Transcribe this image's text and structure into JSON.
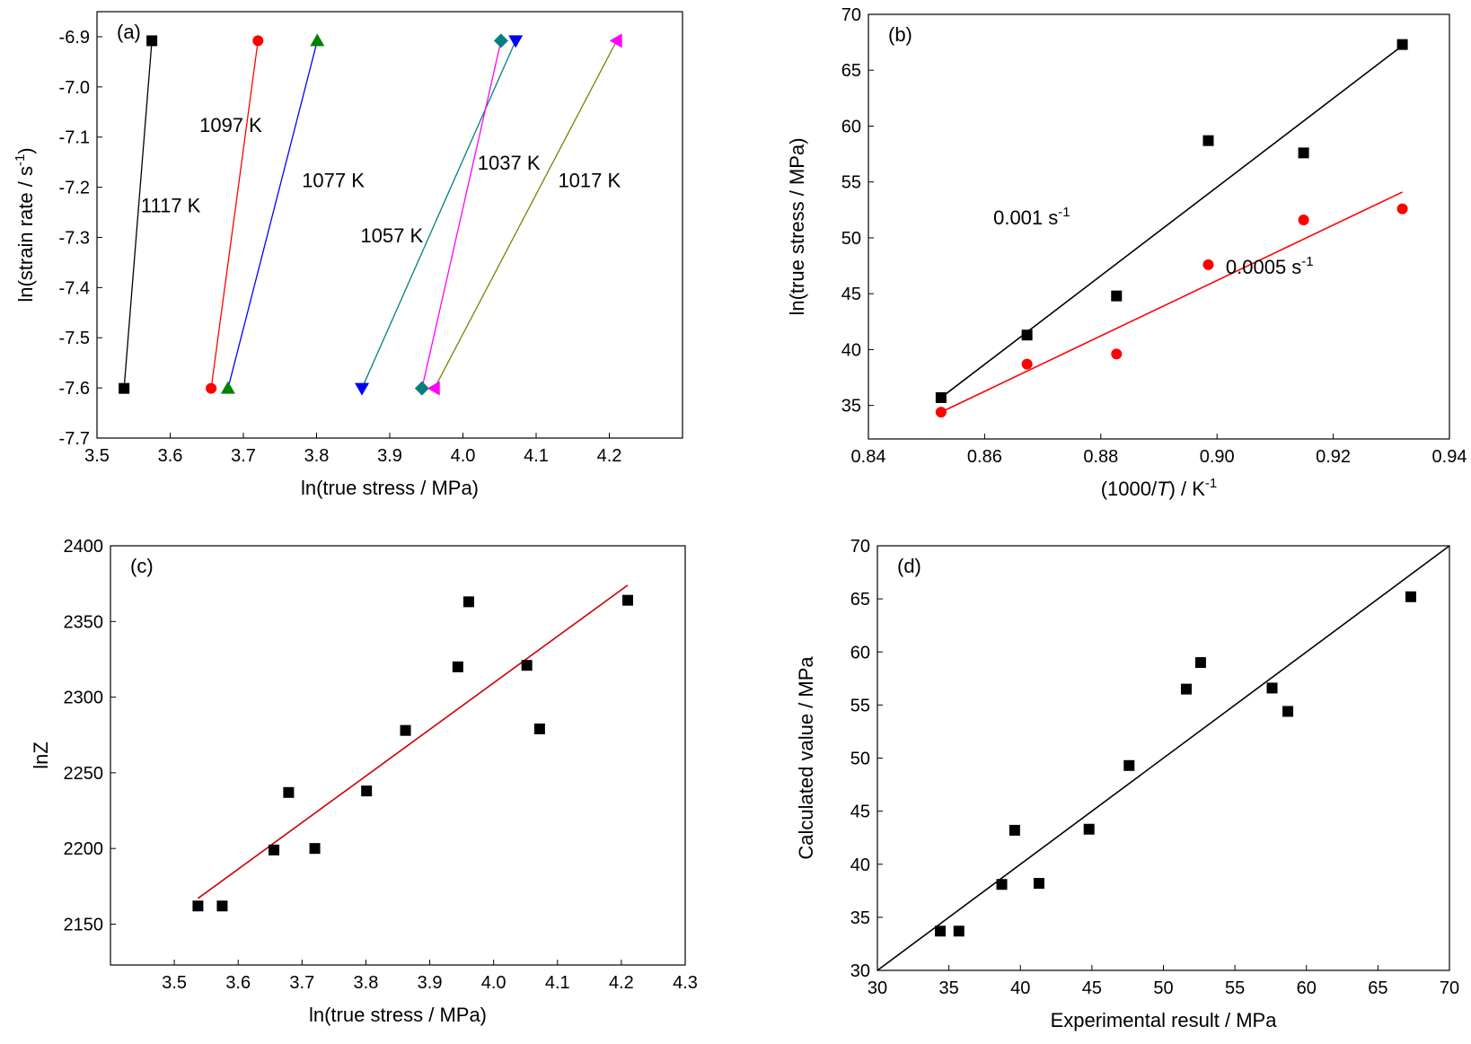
{
  "chart_data": [
    {
      "panel": "(a)",
      "type": "line",
      "xlabel": "ln(true stress / MPa)",
      "ylabel": "ln(strain rate / s",
      "ylabel_sup": "-1",
      "ylabel_end": ")",
      "xlim": [
        3.5,
        4.3
      ],
      "ylim": [
        -7.7,
        -6.85
      ],
      "xticks": [
        "3.5",
        "3.6",
        "3.7",
        "3.8",
        "3.9",
        "4.0",
        "4.1",
        "4.2"
      ],
      "yticks": [
        "-6.9",
        "-7.0",
        "-7.1",
        "-7.2",
        "-7.3",
        "-7.4",
        "-7.5",
        "-7.6",
        "-7.7"
      ],
      "grid": false,
      "series": [
        {
          "name": "1117 K",
          "color": "#000000",
          "marker": "square",
          "points": [
            [
              3.537,
              -7.601
            ],
            [
              3.575,
              -6.908
            ]
          ]
        },
        {
          "name": "1097 K",
          "color": "#ff0000",
          "marker": "circle",
          "points": [
            [
              3.656,
              -7.601
            ],
            [
              3.72,
              -6.908
            ]
          ]
        },
        {
          "name": "1077 K",
          "color": "#0000ff",
          "marker": "triangle-up",
          "points": [
            [
              3.679,
              -7.601
            ],
            [
              3.801,
              -6.908
            ]
          ],
          "marker_color": "#008000"
        },
        {
          "name": "1057 K",
          "color": "#008080",
          "marker": "triangle-down",
          "points": [
            [
              3.862,
              -7.601
            ],
            [
              4.072,
              -6.908
            ]
          ],
          "marker_color": "#0000ff"
        },
        {
          "name": "1037 K",
          "color": "#ff00ff",
          "marker": "diamond",
          "points": [
            [
              3.944,
              -7.601
            ],
            [
              4.052,
              -6.908
            ]
          ],
          "marker_color": "#008080"
        },
        {
          "name": "1017 K",
          "color": "#808000",
          "marker": "triangle-left",
          "points": [
            [
              3.961,
              -7.601
            ],
            [
              4.21,
              -6.908
            ]
          ],
          "marker_color": "#ff00ff"
        }
      ],
      "annotations": [
        {
          "text": "1117 K",
          "x": 3.56,
          "y": -7.25
        },
        {
          "text": "1097 K",
          "x": 3.64,
          "y": -7.09
        },
        {
          "text": "1077 K",
          "x": 3.78,
          "y": -7.2
        },
        {
          "text": "1057 K",
          "x": 3.86,
          "y": -7.31
        },
        {
          "text": "1037 K",
          "x": 4.02,
          "y": -7.165
        },
        {
          "text": "1017 K",
          "x": 4.13,
          "y": -7.2
        }
      ]
    },
    {
      "panel": "(b)",
      "type": "scatter",
      "xlabel_pre": "(1000/",
      "xlabel_ital": "T",
      "xlabel_post": ") / K",
      "xlabel_sup": "-1",
      "ylabel": "ln(true stress / MPa)",
      "xlim": [
        0.84,
        0.94
      ],
      "ylim": [
        32,
        70
      ],
      "xticks": [
        "0.84",
        "0.86",
        "0.88",
        "0.90",
        "0.92",
        "0.94"
      ],
      "yticks": [
        "35",
        "40",
        "45",
        "50",
        "55",
        "60",
        "65",
        "70"
      ],
      "grid": false,
      "series": [
        {
          "name": "0.001 s-1",
          "color": "#000000",
          "marker": "square",
          "x": [
            0.8525,
            0.8673,
            0.8827,
            0.8985,
            0.9149,
            0.9319
          ],
          "y": [
            35.7,
            41.3,
            44.8,
            58.7,
            57.6,
            67.3
          ],
          "fit": [
            [
              0.8525,
              35.7
            ],
            [
              0.9319,
              67.2
            ]
          ]
        },
        {
          "name": "0.0005 s-1",
          "color": "#ff0000",
          "marker": "circle",
          "x": [
            0.8525,
            0.8673,
            0.8827,
            0.8985,
            0.9149,
            0.9319
          ],
          "y": [
            34.4,
            38.7,
            39.6,
            47.6,
            51.6,
            52.6
          ],
          "fit": [
            [
              0.8525,
              34.4
            ],
            [
              0.9319,
              54.1
            ]
          ]
        }
      ],
      "annotations": [
        {
          "text": "0.001 s",
          "sup": "-1",
          "x": 0.8615,
          "y": 51.2,
          "color": "#000000"
        },
        {
          "text": "0.0005 s",
          "sup": "-1",
          "x": 0.9015,
          "y": 46.8,
          "color": "#000000"
        }
      ]
    },
    {
      "panel": "(c)",
      "type": "scatter",
      "xlabel": "ln(true stress / MPa)",
      "ylabel": "lnZ",
      "xlim": [
        3.4,
        4.3
      ],
      "ylim": [
        2123,
        2400
      ],
      "xticks": [
        "3.5",
        "3.6",
        "3.7",
        "3.8",
        "3.9",
        "4.0",
        "4.1",
        "4.2",
        "4.3"
      ],
      "yticks": [
        "2150",
        "2200",
        "2250",
        "2300",
        "2350",
        "2400"
      ],
      "grid": false,
      "series": [
        {
          "name": "",
          "color": "#000000",
          "marker": "square",
          "x": [
            3.537,
            3.575,
            3.656,
            3.679,
            3.72,
            3.801,
            3.862,
            3.944,
            3.961,
            4.052,
            4.072,
            4.21
          ],
          "y": [
            2162,
            2162,
            2199,
            2237,
            2200,
            2238,
            2278,
            2320,
            2363,
            2321,
            2279,
            2364
          ],
          "fit": [
            [
              3.537,
              2167
            ],
            [
              4.21,
              2374
            ]
          ],
          "fit_color": "#cc0000"
        }
      ]
    },
    {
      "panel": "(d)",
      "type": "scatter",
      "xlabel": "Experimental result / MPa",
      "ylabel": "Calculated value / MPa",
      "xlim": [
        30,
        70
      ],
      "ylim": [
        30,
        70
      ],
      "xticks": [
        "30",
        "35",
        "40",
        "45",
        "50",
        "55",
        "60",
        "65",
        "70"
      ],
      "yticks": [
        "30",
        "35",
        "40",
        "45",
        "50",
        "55",
        "60",
        "65",
        "70"
      ],
      "grid": false,
      "series": [
        {
          "name": "",
          "color": "#000000",
          "marker": "square",
          "x": [
            34.4,
            35.7,
            38.7,
            39.6,
            41.3,
            44.8,
            47.6,
            51.6,
            52.6,
            57.6,
            58.7,
            67.3
          ],
          "y": [
            33.7,
            33.7,
            38.1,
            43.2,
            38.2,
            43.3,
            49.3,
            56.5,
            59.0,
            56.6,
            54.4,
            65.2
          ],
          "fit": [
            [
              30,
              30
            ],
            [
              70,
              70
            ]
          ]
        }
      ]
    }
  ]
}
